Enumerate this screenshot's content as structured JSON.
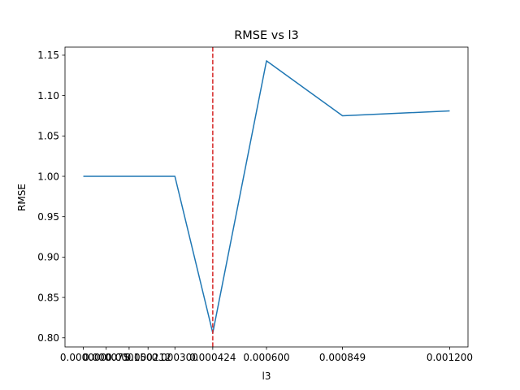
{
  "chart_data": {
    "type": "line",
    "title": "RMSE vs l3",
    "xlabel": "l3",
    "ylabel": "RMSE",
    "x": [
      0.0,
      7.5e-05,
      0.00015,
      0.000212,
      0.0003,
      0.000424,
      0.0006,
      0.000849,
      0.0012
    ],
    "x_tick_labels": [
      "0.000000",
      "0.000075",
      "0.000150",
      "0.000212",
      "0.000300",
      "0.000424",
      "0.000600",
      "0.000849",
      "0.001200"
    ],
    "series": [
      {
        "values": [
          1.0,
          1.0,
          1.0,
          1.0,
          1.0,
          0.806,
          1.143,
          1.075,
          1.081
        ],
        "color": "#1f77b4"
      }
    ],
    "y_ticks": [
      0.8,
      0.85,
      0.9,
      0.95,
      1.0,
      1.05,
      1.1,
      1.15
    ],
    "y_tick_labels": [
      "0.80",
      "0.85",
      "0.90",
      "0.95",
      "1.00",
      "1.05",
      "1.10",
      "1.15"
    ],
    "xlim": [
      -6e-05,
      0.00126
    ],
    "ylim": [
      0.7887,
      1.16
    ],
    "vline": {
      "x": 0.000424,
      "color": "#d62728",
      "style": "dashed"
    },
    "grid": false,
    "legend": "none"
  }
}
